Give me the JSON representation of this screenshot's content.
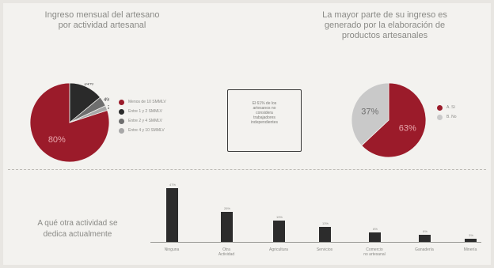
{
  "left_title": [
    "Ingreso mensual del artesano",
    "por actividad artesanal"
  ],
  "right_title": [
    "La mayor parte de su ingreso es",
    "generado por la elaboración de",
    "productos artesanales"
  ],
  "note": [
    "El 61% de los",
    "artesanos no",
    "considera",
    "trabajadores",
    "independientes"
  ],
  "bottom_title": [
    "A qué otra actividad se",
    "dedica actualmente"
  ],
  "chart_data": [
    {
      "type": "pie",
      "title": "Ingreso mensual del artesano por actividad artesanal",
      "labels": [
        "Menos de 10 SMMLV",
        "Entre 1 y 2 SMMLV",
        "Entre 2 y 4 SMMLV",
        "Entre 4 y 10 SMMLV"
      ],
      "values": [
        80,
        14,
        4,
        2
      ],
      "slice_labels": [
        "80%",
        "14%",
        "4%",
        "2%"
      ],
      "colors": [
        "#9b1b2a",
        "#2a2a2a",
        "#6e6e6e",
        "#a8a8a8"
      ],
      "legend": "right"
    },
    {
      "type": "pie",
      "title": "La mayor parte de su ingreso es generado por la elaboración de productos artesanales",
      "labels": [
        "A. Sí",
        "B. No"
      ],
      "values": [
        63,
        37
      ],
      "slice_labels": [
        "63%",
        "37%"
      ],
      "colors": [
        "#9b1b2a",
        "#c9c9c9"
      ],
      "legend": "right"
    },
    {
      "type": "bar",
      "title": "A qué otra actividad se dedica actualmente",
      "categories": [
        "Ninguna",
        "Otra\nActividad",
        "Agricultura",
        "Servicios",
        "Comercio\nno artesanal",
        "Ganadería",
        "Minería"
      ],
      "values": [
        47,
        26,
        19,
        13,
        8,
        6,
        3
      ],
      "value_labels": [
        "47%",
        "26%",
        "19%",
        "13%",
        "8%",
        "6%",
        "3%"
      ],
      "color": "#2c2c2c"
    }
  ]
}
